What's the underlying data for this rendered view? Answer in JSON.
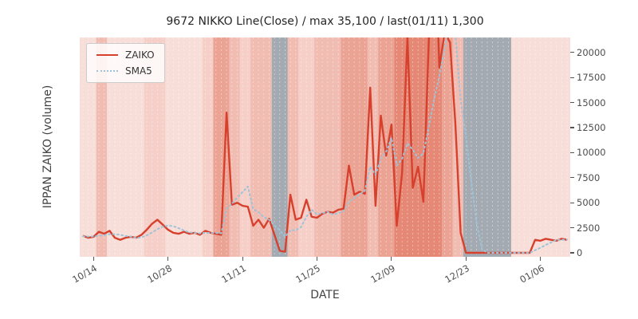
{
  "title": "9672 NIKKO Line(Close) / max 35,100 / last(01/11) 1,300",
  "axes": {
    "x_label": "DATE",
    "y_label": "IPPAN ZAIKO (volume)",
    "x_ticks": [
      {
        "day": 2,
        "label": "10/14"
      },
      {
        "day": 16,
        "label": "10/28"
      },
      {
        "day": 30,
        "label": "11/11"
      },
      {
        "day": 44,
        "label": "11/25"
      },
      {
        "day": 58,
        "label": "12/09"
      },
      {
        "day": 72,
        "label": "12/23"
      },
      {
        "day": 86,
        "label": "01/06"
      }
    ],
    "y_ticks": [
      {
        "value": 0,
        "label": "0"
      },
      {
        "value": 2500,
        "label": "2500"
      },
      {
        "value": 5000,
        "label": "5000"
      },
      {
        "value": 7500,
        "label": "7500"
      },
      {
        "value": 10000,
        "label": "10000"
      },
      {
        "value": 12500,
        "label": "12500"
      },
      {
        "value": 15000,
        "label": "15000"
      },
      {
        "value": 17500,
        "label": "17500"
      },
      {
        "value": 20000,
        "label": "20000"
      }
    ]
  },
  "legend": {
    "items": [
      {
        "label": "ZAIKO"
      },
      {
        "label": "SMA5"
      }
    ]
  },
  "chart_data": {
    "type": "line",
    "x_range_note": "daily points, index 0 = 10/12, index 91 = 01/11",
    "ylim": [
      -400,
      21500
    ],
    "max_value": 35100,
    "last_value": 1300,
    "last_date": "01/11",
    "series": [
      {
        "name": "ZAIKO",
        "color": "#d6402c",
        "style": "solid",
        "values": [
          1700,
          1500,
          1600,
          2100,
          1900,
          2200,
          1500,
          1300,
          1500,
          1600,
          1500,
          1800,
          2300,
          2900,
          3300,
          2800,
          2300,
          2000,
          1900,
          2100,
          1900,
          2000,
          1800,
          2200,
          2000,
          1900,
          1800,
          14000,
          4800,
          5000,
          4700,
          4600,
          2700,
          3300,
          2500,
          3400,
          1800,
          200,
          100,
          5800,
          3300,
          3500,
          5300,
          3600,
          3500,
          3900,
          4100,
          4000,
          4300,
          4400,
          8700,
          5800,
          6100,
          5900,
          16500,
          4700,
          13700,
          9700,
          12800,
          2700,
          8000,
          21500,
          6500,
          8600,
          5100,
          21000,
          35100,
          18500,
          22000,
          21000,
          13000,
          2000,
          0,
          0,
          0,
          0,
          0,
          0,
          0,
          0,
          0,
          0,
          0,
          0,
          0,
          1300,
          1200,
          1400,
          1300,
          1200,
          1400,
          1300
        ]
      },
      {
        "name": "SMA5",
        "color": "#9ec3d8",
        "style": "dotted",
        "values": [
          1650,
          1620,
          1640,
          1700,
          1760,
          1860,
          1860,
          1800,
          1680,
          1620,
          1480,
          1540,
          1740,
          2020,
          2360,
          2620,
          2720,
          2660,
          2460,
          2220,
          2040,
          1980,
          1940,
          2000,
          1980,
          1980,
          1940,
          4380,
          4900,
          5500,
          6060,
          6620,
          4360,
          4060,
          3560,
          3300,
          2740,
          2240,
          1600,
          2260,
          2240,
          2580,
          3600,
          4300,
          3840,
          3960,
          4080,
          3820,
          3960,
          4140,
          5100,
          5440,
          5860,
          6180,
          8600,
          7800,
          9380,
          10100,
          11480,
          8720,
          9380,
          10940,
          10300,
          9460,
          9940,
          12540,
          15260,
          17660,
          20340,
          23520,
          21920,
          15300,
          11600,
          7200,
          3000,
          400,
          0,
          0,
          0,
          0,
          0,
          0,
          0,
          0,
          0,
          260,
          500,
          780,
          1040,
          1280,
          1300,
          1320
        ]
      }
    ],
    "bands": [
      {
        "from": 0,
        "to": 2,
        "level": "0"
      },
      {
        "from": 3,
        "to": 4,
        "level": "2"
      },
      {
        "from": 5,
        "to": 11,
        "level": "0"
      },
      {
        "from": 12,
        "to": 15,
        "level": "1"
      },
      {
        "from": 16,
        "to": 22,
        "level": "0"
      },
      {
        "from": 23,
        "to": 24,
        "level": "1"
      },
      {
        "from": 25,
        "to": 27,
        "level": "3"
      },
      {
        "from": 28,
        "to": 29,
        "level": "2"
      },
      {
        "from": 30,
        "to": 31,
        "level": "1"
      },
      {
        "from": 32,
        "to": 35,
        "level": "2"
      },
      {
        "from": 36,
        "to": 38,
        "level": "g"
      },
      {
        "from": 39,
        "to": 40,
        "level": "2"
      },
      {
        "from": 41,
        "to": 43,
        "level": "1"
      },
      {
        "from": 44,
        "to": 48,
        "level": "2"
      },
      {
        "from": 49,
        "to": 53,
        "level": "3"
      },
      {
        "from": 54,
        "to": 55,
        "level": "2"
      },
      {
        "from": 56,
        "to": 58,
        "level": "3"
      },
      {
        "from": 59,
        "to": 67,
        "level": "4"
      },
      {
        "from": 68,
        "to": 69,
        "level": "3"
      },
      {
        "from": 70,
        "to": 71,
        "level": "2"
      },
      {
        "from": 72,
        "to": 80,
        "level": "g"
      },
      {
        "from": 81,
        "to": 91,
        "level": "0"
      }
    ],
    "band_colors": {
      "0": "#f8ded8",
      "1": "#f5cfc8",
      "2": "#f1bcb2",
      "3": "#eba394",
      "4": "#e58876",
      "g": "#a4aab2"
    }
  }
}
